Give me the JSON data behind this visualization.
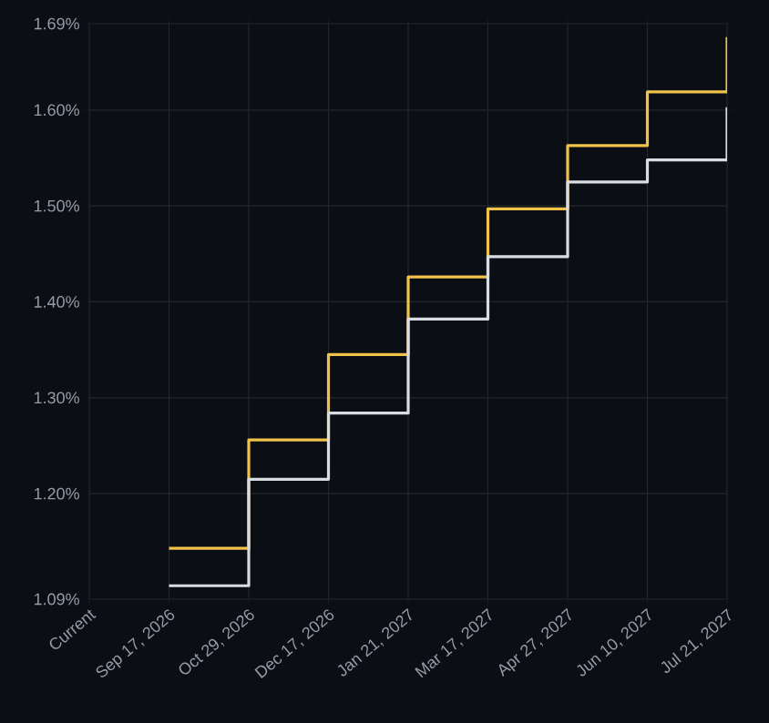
{
  "chart_data": {
    "type": "step",
    "categories": [
      "Current",
      "Sep 17, 2026",
      "Oct 29, 2026",
      "Dec 17, 2026",
      "Jan 21, 2027",
      "Mar 17, 2027",
      "Apr 27, 2027",
      "Jun 10, 2027",
      "Jul 21, 2027"
    ],
    "series": [
      {
        "color": "#f0c24a",
        "values": [
          null,
          1.143,
          1.256,
          1.345,
          1.426,
          1.497,
          1.563,
          1.619,
          1.676
        ]
      },
      {
        "color": "#d9dde3",
        "values": [
          null,
          1.104,
          1.215,
          1.284,
          1.382,
          1.447,
          1.525,
          1.548,
          1.603
        ]
      }
    ],
    "ylim": [
      1.09,
      1.69
    ],
    "yticks": [
      {
        "value": 1.09,
        "label": "1.09%"
      },
      {
        "value": 1.2,
        "label": "1.20%"
      },
      {
        "value": 1.3,
        "label": "1.30%"
      },
      {
        "value": 1.4,
        "label": "1.40%"
      },
      {
        "value": 1.5,
        "label": "1.50%"
      },
      {
        "value": 1.6,
        "label": "1.60%"
      },
      {
        "value": 1.69,
        "label": "1.69%"
      }
    ],
    "grid": true,
    "marker": "none",
    "line_style": "solid"
  }
}
